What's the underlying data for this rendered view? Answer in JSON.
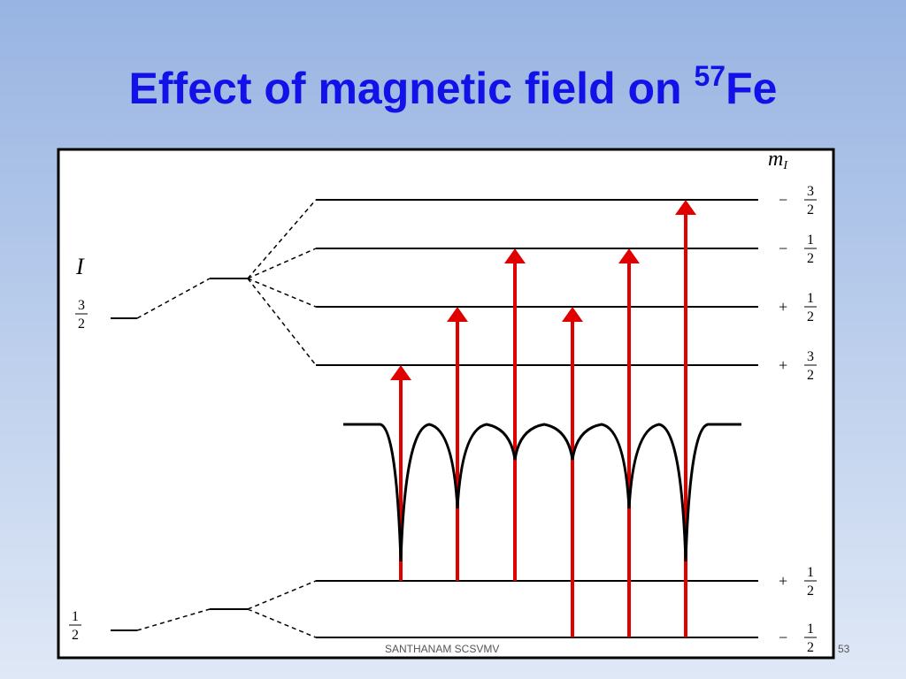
{
  "title": {
    "text": "Effect of magnetic field on ",
    "superscript": "57",
    "element": "Fe"
  },
  "diagram": {
    "spin_label": "I",
    "excited_spin": {
      "num": "3",
      "den": "2"
    },
    "ground_spin": {
      "num": "1",
      "den": "2"
    },
    "mi_label": "m",
    "mi_sub": "I",
    "levels": [
      {
        "sign": "−",
        "num": "3",
        "den": "2"
      },
      {
        "sign": "−",
        "num": "1",
        "den": "2"
      },
      {
        "sign": "+",
        "num": "1",
        "den": "2"
      },
      {
        "sign": "+",
        "num": "3",
        "den": "2"
      },
      {
        "sign": "+",
        "num": "1",
        "den": "2"
      },
      {
        "sign": "−",
        "num": "1",
        "den": "2"
      }
    ]
  },
  "footer": {
    "author": "SANTHANAM SCSVMV",
    "page": "53"
  }
}
